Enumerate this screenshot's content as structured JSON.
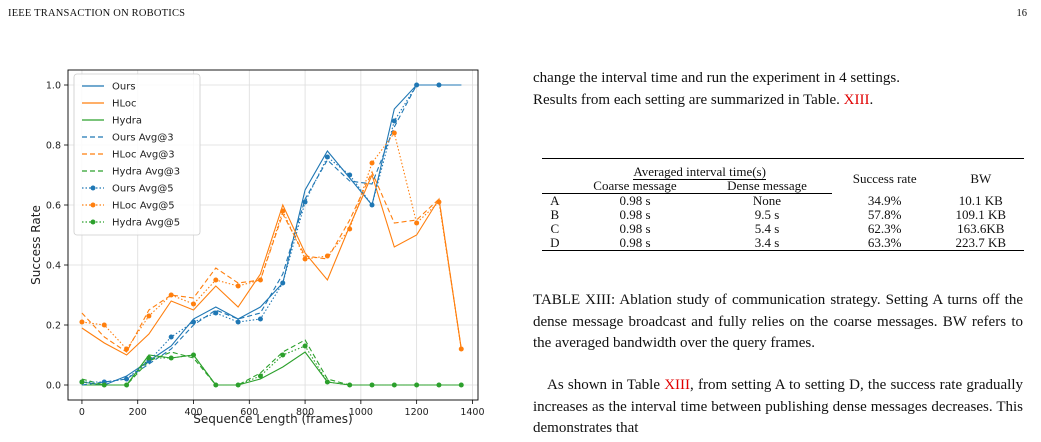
{
  "header": {
    "journal": "IEEE TRANSACTION ON ROBOTICS",
    "page_number": "16"
  },
  "text": {
    "intro_line1": "change the interval time and run the experiment in 4 settings.",
    "intro_line2_a": "Results from each setting are summarized in Table.",
    "intro_ref": "XIII",
    "intro_line2_b": ".",
    "caption": "TABLE XIII: Ablation study of communication strategy. Setting A turns off the dense message broadcast and fully relies on the coarse messages. BW refers to the averaged bandwidth over the query frames.",
    "body_a": "As shown in Table",
    "body_ref": "XIII",
    "body_b": ", from setting A to setting D, the success rate gradually increases as the interval time between publishing dense messages decreases. This demonstrates that"
  },
  "table": {
    "group_header": "Averaged interval time(s)",
    "headers": [
      "",
      "Coarse message",
      "Dense message",
      "Success rate",
      "BW"
    ],
    "rows": [
      [
        "A",
        "0.98 s",
        "None",
        "34.9%",
        "10.1 KB"
      ],
      [
        "B",
        "0.98 s",
        "9.5 s",
        "57.8%",
        "109.1 KB"
      ],
      [
        "C",
        "0.98 s",
        "5.4 s",
        "62.3%",
        "163.6KB"
      ],
      [
        "D",
        "0.98 s",
        "3.4 s",
        "63.3%",
        "223.7 KB"
      ]
    ]
  },
  "chart_data": {
    "type": "line",
    "xlabel": "Sequence Length (frames)",
    "ylabel": "Success Rate",
    "xlim": [
      -50,
      1420
    ],
    "ylim": [
      -0.05,
      1.05
    ],
    "xticks": [
      0,
      200,
      400,
      600,
      800,
      1000,
      1200,
      1400
    ],
    "yticks": [
      0.0,
      0.2,
      0.4,
      0.6,
      0.8,
      1.0
    ],
    "grid": true,
    "legend_position": "top-left",
    "colors": {
      "ours": "#1f77b4",
      "hloc": "#ff7f0e",
      "hydra": "#2ca02c"
    },
    "series": [
      {
        "name": "Ours",
        "style": "solid",
        "color": "#1f77b4",
        "x": [
          0,
          80,
          160,
          240,
          320,
          400,
          480,
          560,
          640,
          720,
          800,
          880,
          960,
          1040,
          1120,
          1200,
          1280,
          1360
        ],
        "y": [
          0.01,
          0.0,
          0.03,
          0.08,
          0.13,
          0.22,
          0.26,
          0.22,
          0.26,
          0.34,
          0.65,
          0.78,
          0.69,
          0.6,
          0.92,
          1.0,
          1.0,
          1.0
        ]
      },
      {
        "name": "HLoc",
        "style": "solid",
        "color": "#ff7f0e",
        "x": [
          0,
          80,
          160,
          240,
          320,
          400,
          480,
          560,
          640,
          720,
          800,
          880,
          960,
          1040,
          1120,
          1200,
          1280,
          1360
        ],
        "y": [
          0.19,
          0.14,
          0.1,
          0.17,
          0.28,
          0.25,
          0.33,
          0.26,
          0.37,
          0.6,
          0.44,
          0.35,
          0.53,
          0.7,
          0.46,
          0.5,
          0.62,
          0.12
        ]
      },
      {
        "name": "Hydra",
        "style": "solid",
        "color": "#2ca02c",
        "x": [
          0,
          80,
          160,
          240,
          320,
          400,
          480,
          560,
          640,
          720,
          800,
          880,
          960,
          1040,
          1120,
          1200,
          1280,
          1360
        ],
        "y": [
          0.0,
          0.0,
          0.0,
          0.1,
          0.09,
          0.1,
          0.0,
          0.0,
          0.02,
          0.06,
          0.11,
          0.01,
          0.0,
          0.0,
          0.0,
          0.0,
          0.0,
          0.0
        ]
      },
      {
        "name": "Ours Avg@3",
        "style": "dashed",
        "color": "#1f77b4",
        "x": [
          0,
          80,
          160,
          240,
          320,
          400,
          480,
          560,
          640,
          720,
          800,
          880,
          960,
          1040,
          1120,
          1200,
          1280,
          1360
        ],
        "y": [
          0.0,
          0.01,
          0.02,
          0.07,
          0.12,
          0.2,
          0.25,
          0.22,
          0.24,
          0.37,
          0.62,
          0.75,
          0.68,
          0.67,
          0.86,
          1.0,
          1.0,
          1.0
        ]
      },
      {
        "name": "HLoc Avg@3",
        "style": "dashed",
        "color": "#ff7f0e",
        "x": [
          0,
          80,
          160,
          240,
          320,
          400,
          480,
          560,
          640,
          720,
          800,
          880,
          960,
          1040,
          1120,
          1200,
          1280,
          1360
        ],
        "y": [
          0.24,
          0.16,
          0.11,
          0.25,
          0.3,
          0.29,
          0.39,
          0.34,
          0.35,
          0.57,
          0.43,
          0.42,
          0.55,
          0.71,
          0.54,
          0.55,
          0.62,
          0.12
        ]
      },
      {
        "name": "Hydra Avg@3",
        "style": "dashed",
        "color": "#2ca02c",
        "x": [
          0,
          80,
          160,
          240,
          320,
          400,
          480,
          560,
          640,
          720,
          800,
          880,
          960,
          1040,
          1120,
          1200,
          1280,
          1360
        ],
        "y": [
          0.02,
          0.0,
          0.0,
          0.08,
          0.11,
          0.09,
          0.0,
          0.0,
          0.04,
          0.11,
          0.15,
          0.02,
          0.0,
          0.0,
          0.0,
          0.0,
          0.0,
          0.0
        ]
      },
      {
        "name": "Ours Avg@5",
        "style": "dotted-marker",
        "color": "#1f77b4",
        "x": [
          0,
          80,
          160,
          240,
          320,
          400,
          480,
          560,
          640,
          720,
          800,
          880,
          960,
          1040,
          1120,
          1200,
          1280
        ],
        "y": [
          0.01,
          0.01,
          0.02,
          0.08,
          0.16,
          0.21,
          0.24,
          0.21,
          0.22,
          0.34,
          0.61,
          0.76,
          0.7,
          0.6,
          0.88,
          1.0,
          1.0
        ]
      },
      {
        "name": "HLoc Avg@5",
        "style": "dotted-marker",
        "color": "#ff7f0e",
        "x": [
          0,
          80,
          160,
          240,
          320,
          400,
          480,
          560,
          640,
          720,
          800,
          880,
          960,
          1040,
          1120,
          1200,
          1280,
          1360
        ],
        "y": [
          0.21,
          0.2,
          0.12,
          0.23,
          0.3,
          0.27,
          0.35,
          0.33,
          0.35,
          0.58,
          0.42,
          0.43,
          0.52,
          0.74,
          0.84,
          0.54,
          0.61,
          0.12
        ]
      },
      {
        "name": "Hydra Avg@5",
        "style": "dotted-marker",
        "color": "#2ca02c",
        "x": [
          0,
          80,
          160,
          240,
          320,
          400,
          480,
          560,
          640,
          720,
          800,
          880,
          960,
          1040,
          1120,
          1200,
          1280,
          1360
        ],
        "y": [
          0.01,
          0.0,
          0.0,
          0.09,
          0.09,
          0.1,
          0.0,
          0.0,
          0.03,
          0.1,
          0.13,
          0.01,
          0.0,
          0.0,
          0.0,
          0.0,
          0.0,
          0.0
        ]
      }
    ]
  }
}
